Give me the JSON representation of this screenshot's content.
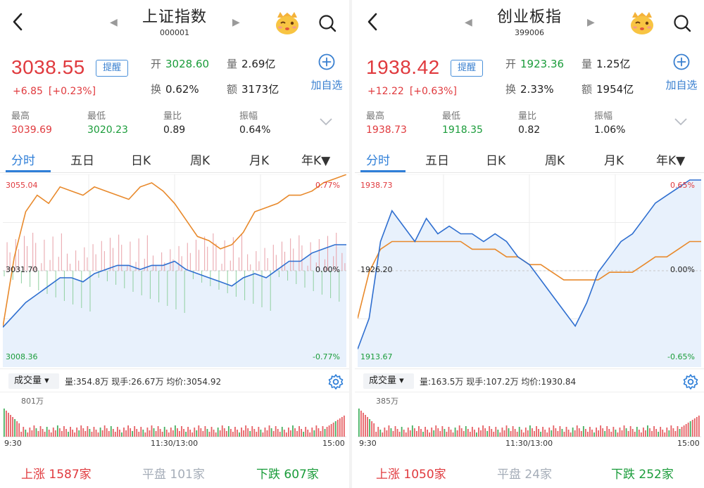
{
  "panels": [
    {
      "title": "上证指数",
      "code": "000001",
      "price": "3038.55",
      "remind_label": "提醒",
      "change": "+6.85",
      "change_pct": "[+0.23%]",
      "open_label": "开",
      "open_value": "3028.60",
      "volume_label": "量",
      "volume_value": "2.69亿",
      "turnover_label": "换",
      "turnover_value": "0.62%",
      "amount_label": "额",
      "amount_value": "3173亿",
      "add_label": "加自选",
      "stats": [
        {
          "label": "最高",
          "value": "3039.69",
          "color": "red"
        },
        {
          "label": "最低",
          "value": "3020.23",
          "color": "green"
        },
        {
          "label": "量比",
          "value": "0.89",
          "color": "dark"
        },
        {
          "label": "振幅",
          "value": "0.64%",
          "color": "dark"
        }
      ],
      "tabs": [
        "分时",
        "五日",
        "日K",
        "周K",
        "月K",
        "年K▼"
      ],
      "chart": {
        "high_label": "3055.04",
        "mid_label": "3031.70",
        "low_label": "3008.36",
        "pct_high": "0.77%",
        "pct_mid": "0.00%",
        "pct_low": "-0.77%"
      },
      "vol_select": "成交量 ▾",
      "vol_info": "量:354.8万  现手:26.67万  均价:3054.92",
      "vol_max": "801万",
      "time_start": "9:30",
      "time_mid": "11:30/13:00",
      "time_end": "15:00",
      "up_label": "上涨",
      "up_count": "1587家",
      "flat_label": "平盘",
      "flat_count": "101家",
      "down_label": "下跌",
      "down_count": "607家"
    },
    {
      "title": "创业板指",
      "code": "399006",
      "price": "1938.42",
      "remind_label": "提醒",
      "change": "+12.22",
      "change_pct": "[+0.63%]",
      "open_label": "开",
      "open_value": "1923.36",
      "volume_label": "量",
      "volume_value": "1.25亿",
      "turnover_label": "换",
      "turnover_value": "2.33%",
      "amount_label": "额",
      "amount_value": "1954亿",
      "add_label": "加自选",
      "stats": [
        {
          "label": "最高",
          "value": "1938.73",
          "color": "red"
        },
        {
          "label": "最低",
          "value": "1918.35",
          "color": "green"
        },
        {
          "label": "量比",
          "value": "0.82",
          "color": "dark"
        },
        {
          "label": "振幅",
          "value": "1.06%",
          "color": "dark"
        }
      ],
      "tabs": [
        "分时",
        "五日",
        "日K",
        "周K",
        "月K",
        "年K▼"
      ],
      "chart": {
        "high_label": "1938.73",
        "mid_label": "1926.20",
        "low_label": "1913.67",
        "pct_high": "0.65%",
        "pct_mid": "0.00%",
        "pct_low": "-0.65%"
      },
      "vol_select": "成交量 ▾",
      "vol_info": "量:163.5万  现手:107.2万  均价:1930.84",
      "vol_max": "385万",
      "time_start": "9:30",
      "time_mid": "11:30/13:00",
      "time_end": "15:00",
      "up_label": "上涨",
      "up_count": "1050家",
      "flat_label": "平盘",
      "flat_count": "24家",
      "down_label": "下跌",
      "down_count": "252家"
    }
  ],
  "colors": {
    "up": "#e03a3e",
    "down": "#1a9c3a",
    "accent": "#2f7fd8",
    "price_line": "#2f6fd0",
    "avg_line": "#e8892b",
    "fill": "#e8f1fc"
  },
  "icons": [
    "back-icon",
    "prev-arrow-icon",
    "next-arrow-icon",
    "mascot-icon",
    "search-icon",
    "add-circle-icon",
    "chevron-down-icon",
    "gear-icon"
  ],
  "chart_data": [
    {
      "type": "line",
      "title": "上证指数",
      "series": [
        {
          "name": "",
          "values": [
            3018,
            3021,
            3024,
            3026,
            3028,
            3030,
            3030,
            3029,
            3031,
            3032,
            3033,
            3033,
            3032,
            3033,
            3033,
            3034,
            3032,
            3031,
            3030,
            3029,
            3028,
            3030,
            3031,
            3030,
            3032,
            3034,
            3034,
            3036,
            3037,
            3038,
            3038
          ]
        },
        {
          "name": "",
          "values": [
            3018,
            3035,
            3046,
            3050,
            3048,
            3052,
            3051,
            3050,
            3052,
            3051,
            3050,
            3049,
            3052,
            3053,
            3051,
            3048,
            3044,
            3040,
            3039,
            3037,
            3038,
            3041,
            3046,
            3047,
            3048,
            3050,
            3050,
            3051,
            3053,
            3054,
            3055
          ]
        }
      ],
      "xlabel": "",
      "ylabel": "",
      "ylim": [
        3008.36,
        3055.04
      ]
    },
    {
      "type": "line",
      "title": "创业板指",
      "series": [
        {
          "name": "",
          "values": [
            1916,
            1920,
            1930,
            1934,
            1932,
            1930,
            1933,
            1931,
            1932,
            1931,
            1931,
            1930,
            1931,
            1930,
            1928,
            1927,
            1925,
            1923,
            1921,
            1919,
            1922,
            1926,
            1928,
            1930,
            1931,
            1933,
            1935,
            1936,
            1937,
            1938,
            1938
          ]
        },
        {
          "name": "",
          "values": [
            1920,
            1926,
            1929,
            1930,
            1930,
            1930,
            1930,
            1930,
            1930,
            1930,
            1929,
            1929,
            1929,
            1928,
            1928,
            1927,
            1927,
            1926,
            1925,
            1925,
            1925,
            1925,
            1926,
            1926,
            1926,
            1927,
            1928,
            1928,
            1929,
            1930,
            1930
          ]
        }
      ],
      "xlabel": "",
      "ylabel": "",
      "ylim": [
        1913.67,
        1938.73
      ]
    }
  ]
}
